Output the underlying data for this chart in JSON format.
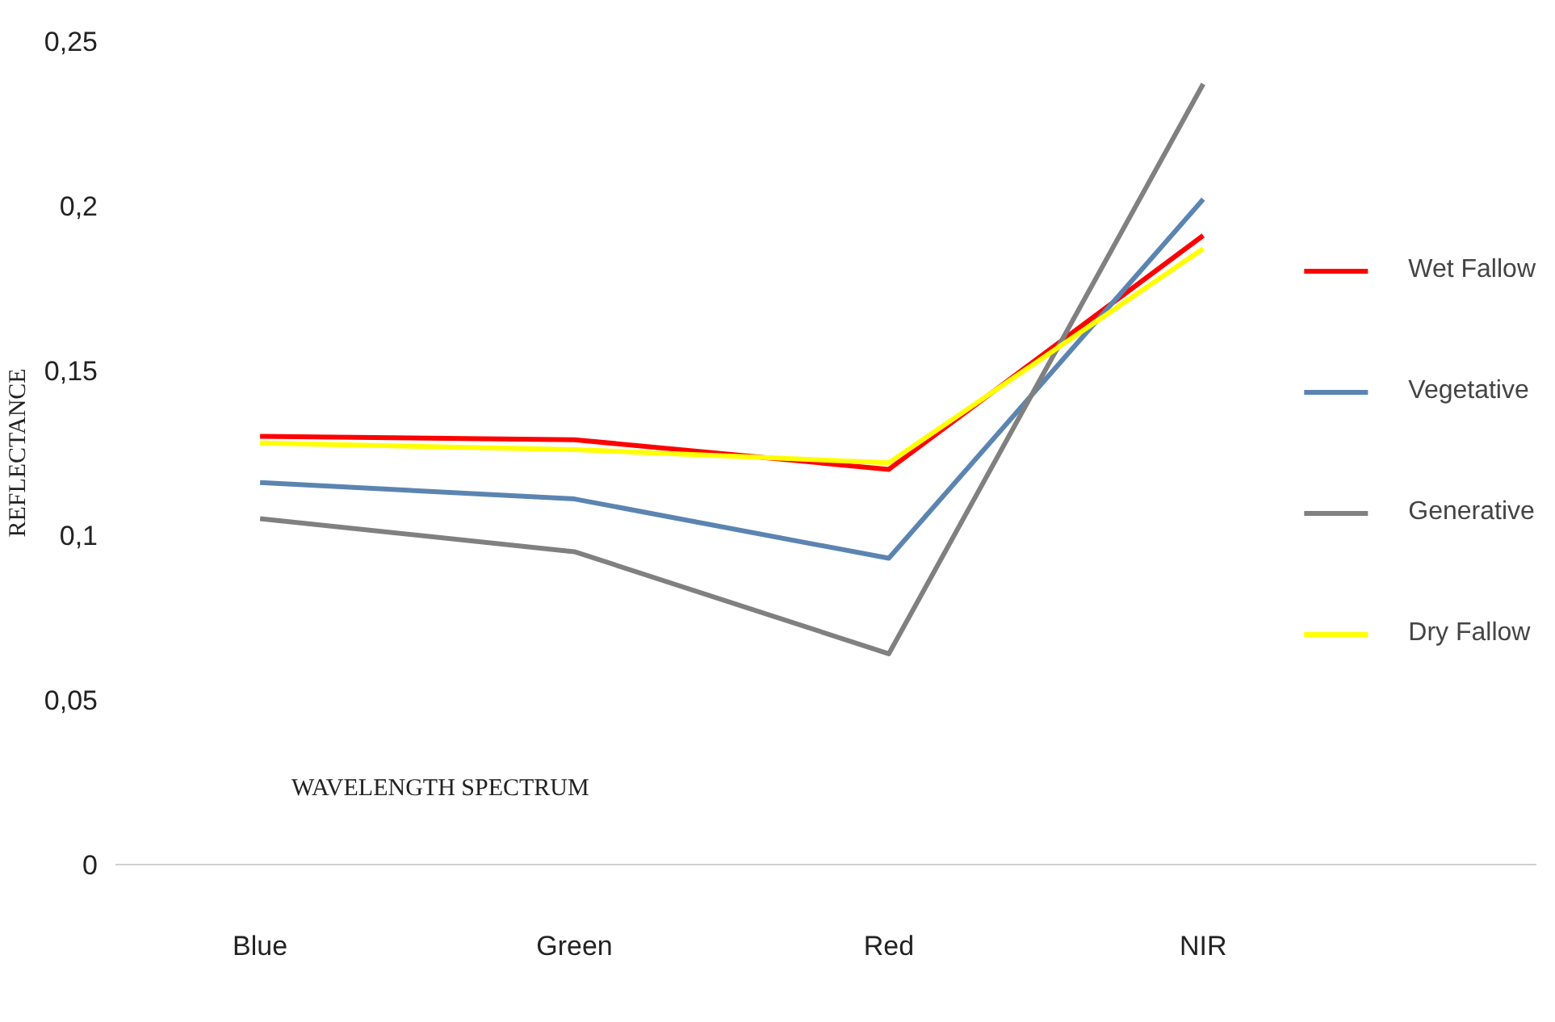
{
  "chart_data": {
    "type": "line",
    "xlabel": "WAVELENGTH SPECTRUM",
    "ylabel": "REFLECTANCE",
    "categories": [
      "Blue",
      "Green",
      "Red",
      "NIR"
    ],
    "series": [
      {
        "name": "Wet Fallow",
        "color": "#ff0000",
        "values": [
          0.13,
          0.129,
          0.12,
          0.191
        ]
      },
      {
        "name": "Vegetative",
        "color": "#5b84b1",
        "values": [
          0.116,
          0.111,
          0.093,
          0.202
        ]
      },
      {
        "name": "Generative",
        "color": "#808080",
        "values": [
          0.105,
          0.095,
          0.064,
          0.237
        ]
      },
      {
        "name": "Dry Fallow",
        "color": "#ffff00",
        "values": [
          0.128,
          0.126,
          0.122,
          0.187
        ]
      }
    ],
    "ylim": [
      0,
      0.25
    ],
    "yticks": [
      {
        "value": 0,
        "label": "0"
      },
      {
        "value": 0.05,
        "label": "0,05"
      },
      {
        "value": 0.1,
        "label": "0,1"
      },
      {
        "value": 0.15,
        "label": "0,15"
      },
      {
        "value": 0.2,
        "label": "0,2"
      },
      {
        "value": 0.25,
        "label": "0,25"
      }
    ],
    "legend": "right",
    "grid": false,
    "marker": "none",
    "line_style": "solid"
  }
}
